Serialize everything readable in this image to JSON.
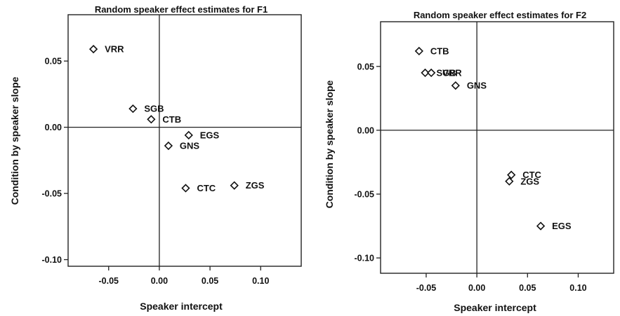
{
  "chart_data": [
    {
      "type": "scatter",
      "title": "Random speaker effect estimates for F1",
      "xlabel": "Speaker intercept",
      "ylabel": "Condition by speaker slope",
      "xlim": [
        -0.09,
        0.14
      ],
      "ylim": [
        -0.105,
        0.085
      ],
      "xticks": [
        -0.05,
        0.0,
        0.05,
        0.1
      ],
      "xtick_labels": [
        "-0.05",
        "0.00",
        "0.05",
        "0.10"
      ],
      "yticks": [
        -0.1,
        -0.05,
        0.0,
        0.05
      ],
      "ytick_labels": [
        "-0.10",
        "-0.05",
        "0.00",
        "0.05"
      ],
      "reference_lines": {
        "x": 0,
        "y": 0
      },
      "points": [
        {
          "label": "VRR",
          "x": -0.065,
          "y": 0.059
        },
        {
          "label": "SGB",
          "x": -0.026,
          "y": 0.014
        },
        {
          "label": "CTB",
          "x": -0.008,
          "y": 0.006
        },
        {
          "label": "EGS",
          "x": 0.029,
          "y": -0.006
        },
        {
          "label": "GNS",
          "x": 0.009,
          "y": -0.014
        },
        {
          "label": "CTC",
          "x": 0.026,
          "y": -0.046
        },
        {
          "label": "ZGS",
          "x": 0.074,
          "y": -0.044
        }
      ]
    },
    {
      "type": "scatter",
      "title": "Random speaker effect estimates for F2",
      "xlabel": "Speaker intercept",
      "ylabel": "Condition by speaker slope",
      "xlim": [
        -0.095,
        0.135
      ],
      "ylim": [
        -0.112,
        0.085
      ],
      "xticks": [
        -0.05,
        0.0,
        0.05,
        0.1
      ],
      "xtick_labels": [
        "-0.05",
        "0.00",
        "0.05",
        "0.10"
      ],
      "yticks": [
        -0.1,
        -0.05,
        0.0,
        0.05
      ],
      "ytick_labels": [
        "-0.10",
        "-0.05",
        "0.00",
        "0.05"
      ],
      "reference_lines": {
        "x": 0,
        "y": 0
      },
      "points": [
        {
          "label": "CTB",
          "x": -0.057,
          "y": 0.062
        },
        {
          "label": "SGB",
          "x": -0.051,
          "y": 0.045
        },
        {
          "label": "VRR",
          "x": -0.045,
          "y": 0.045
        },
        {
          "label": "GNS",
          "x": -0.021,
          "y": 0.035
        },
        {
          "label": "CTC",
          "x": 0.034,
          "y": -0.035
        },
        {
          "label": "ZGS",
          "x": 0.032,
          "y": -0.04
        },
        {
          "label": "EGS",
          "x": 0.063,
          "y": -0.075
        }
      ]
    }
  ]
}
